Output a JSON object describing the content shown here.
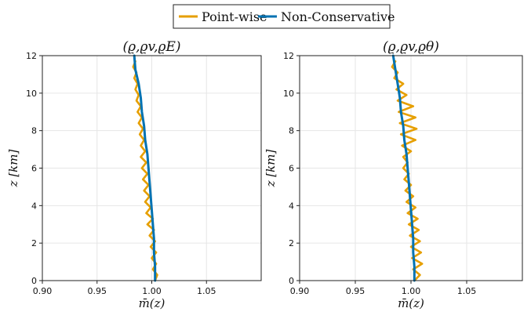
{
  "legend": {
    "items": [
      {
        "label": "Point-wise",
        "color": "#E69F00"
      },
      {
        "label": "Non-Conservative",
        "color": "#0072B2"
      }
    ]
  },
  "chart_data": [
    {
      "type": "line",
      "title": "(ϱ,ϱv,ϱE)",
      "xlabel": "m̄(z)",
      "ylabel": "z [km]",
      "xlim": [
        0.9,
        1.1
      ],
      "ylim": [
        0,
        12
      ],
      "xticks": [
        "0.90",
        "0.95",
        "1.00",
        "1.05"
      ],
      "yticks": [
        "0",
        "2",
        "4",
        "6",
        "8",
        "10",
        "12"
      ],
      "grid": true,
      "series": [
        {
          "name": "Point-wise",
          "color": "#E69F00",
          "x": [
            1.003,
            1.005,
            1.001,
            1.004,
            1.0,
            1.004,
            0.999,
            1.003,
            0.998,
            1.002,
            0.996,
            1.001,
            0.995,
            0.999,
            0.994,
            0.998,
            0.993,
            0.997,
            0.992,
            0.996,
            0.991,
            0.995,
            0.99,
            0.994,
            0.99,
            0.993,
            0.989,
            0.992,
            0.988,
            0.991,
            0.987,
            0.99,
            0.986,
            0.988,
            0.985,
            0.987,
            0.984,
            0.986,
            0.983,
            0.985
          ],
          "y": [
            0.0,
            0.3,
            0.6,
            0.9,
            1.2,
            1.5,
            1.8,
            2.1,
            2.4,
            2.7,
            3.0,
            3.3,
            3.6,
            3.9,
            4.2,
            4.5,
            4.8,
            5.1,
            5.4,
            5.7,
            6.0,
            6.3,
            6.6,
            6.9,
            7.2,
            7.5,
            7.8,
            8.1,
            8.4,
            8.7,
            9.0,
            9.3,
            9.6,
            9.9,
            10.2,
            10.5,
            10.8,
            11.1,
            11.4,
            11.7
          ]
        },
        {
          "name": "Non-Conservative",
          "color": "#0072B2",
          "x": [
            1.003,
            1.003,
            1.002,
            1.002,
            1.001,
            1.0,
            0.999,
            0.998,
            0.997,
            0.996,
            0.994,
            0.993,
            0.991,
            0.99,
            0.988,
            0.985,
            0.984
          ],
          "y": [
            0,
            0.75,
            1.5,
            2.25,
            3.0,
            3.75,
            4.5,
            5.25,
            6.0,
            6.75,
            7.5,
            8.25,
            9.0,
            9.75,
            10.5,
            11.25,
            12.0
          ]
        }
      ]
    },
    {
      "type": "line",
      "title": "(ϱ,ϱv,ϱθ)",
      "xlabel": "m̄(z)",
      "ylabel": "z [km]",
      "xlim": [
        0.9,
        1.1
      ],
      "ylim": [
        0,
        12
      ],
      "xticks": [
        "0.90",
        "0.95",
        "1.00",
        "1.05"
      ],
      "yticks": [
        "0",
        "2",
        "4",
        "6",
        "8",
        "10",
        "12"
      ],
      "grid": true,
      "series": [
        {
          "name": "Point-wise",
          "color": "#E69F00",
          "x": [
            1.003,
            1.008,
            1.002,
            1.01,
            1.001,
            1.009,
            1.0,
            1.008,
            0.999,
            1.007,
            0.998,
            1.006,
            0.997,
            1.004,
            0.996,
            1.002,
            0.995,
            1.0,
            0.994,
            0.998,
            0.993,
            0.997,
            0.993,
            1.0,
            0.992,
            1.004,
            0.991,
            1.005,
            0.99,
            1.004,
            0.989,
            1.002,
            0.988,
            0.996,
            0.987,
            0.993,
            0.985,
            0.988,
            0.983,
            0.986
          ],
          "y": [
            0.0,
            0.3,
            0.6,
            0.9,
            1.2,
            1.5,
            1.8,
            2.1,
            2.4,
            2.7,
            3.0,
            3.3,
            3.6,
            3.9,
            4.2,
            4.5,
            4.8,
            5.1,
            5.4,
            5.7,
            6.0,
            6.3,
            6.6,
            6.9,
            7.2,
            7.5,
            7.8,
            8.1,
            8.4,
            8.7,
            9.0,
            9.3,
            9.6,
            9.9,
            10.2,
            10.5,
            10.8,
            11.1,
            11.4,
            11.7
          ]
        },
        {
          "name": "Non-Conservative",
          "color": "#0072B2",
          "x": [
            1.003,
            1.003,
            1.002,
            1.002,
            1.001,
            1.0,
            0.999,
            0.998,
            0.997,
            0.996,
            0.994,
            0.993,
            0.991,
            0.99,
            0.988,
            0.986,
            0.984
          ],
          "y": [
            0,
            0.75,
            1.5,
            2.25,
            3.0,
            3.75,
            4.5,
            5.25,
            6.0,
            6.75,
            7.5,
            8.25,
            9.0,
            9.75,
            10.5,
            11.25,
            12.0
          ]
        }
      ]
    }
  ]
}
